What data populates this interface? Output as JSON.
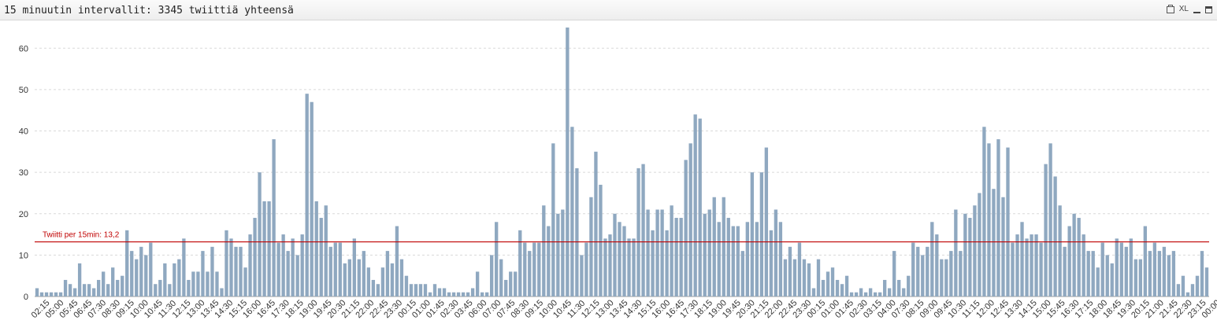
{
  "header": {
    "title": "15 minuutin intervallit: 3345 twiittiä yhteensä",
    "tools": {
      "print_icon": "print-icon",
      "xl_label": "XL",
      "minimize_icon": "minimize-icon",
      "maximize_icon": "maximize-icon"
    }
  },
  "chart_data": {
    "type": "bar",
    "title": "15 minuutin intervallit: 3345 twiittiä yhteensä",
    "xlabel": "",
    "ylabel": "",
    "ylim": [
      0,
      65
    ],
    "yticks": [
      0,
      10,
      20,
      30,
      40,
      50,
      60
    ],
    "grid": true,
    "bar_color": "#8fa8c0",
    "reference_line": {
      "value": 13.2,
      "label": "Twiitti per 15min: 13,2",
      "color": "#c00000"
    },
    "x_tick_labels": [
      "02:15",
      "05:00",
      "05:45",
      "06:45",
      "07:30",
      "08:30",
      "09:15",
      "10:00",
      "10:45",
      "11:30",
      "12:15",
      "13:00",
      "13:45",
      "14:30",
      "15:15",
      "16:00",
      "16:45",
      "17:30",
      "18:15",
      "19:00",
      "19:45",
      "20:30",
      "21:15",
      "22:00",
      "22:45",
      "23:30",
      "00:15",
      "01:00",
      "01:45",
      "02:30",
      "03:45",
      "06:00",
      "07:00",
      "07:45",
      "08:30",
      "09:15",
      "10:00",
      "10:45",
      "11:30",
      "12:15",
      "13:00",
      "13:45",
      "14:30",
      "15:15",
      "16:00",
      "16:45",
      "17:30",
      "18:15",
      "19:00",
      "19:45",
      "20:30",
      "21:15",
      "22:00",
      "22:45",
      "23:30",
      "00:15",
      "01:00",
      "01:45",
      "02:30",
      "03:15",
      "04:00",
      "07:30",
      "08:15",
      "09:00",
      "09:45",
      "10:30",
      "11:15",
      "12:00",
      "12:45",
      "13:30",
      "14:15",
      "15:00",
      "15:45",
      "16:30",
      "17:15",
      "18:00",
      "18:45",
      "19:30",
      "20:15",
      "21:00",
      "21:45",
      "22:30",
      "23:15",
      "00:00"
    ],
    "values": [
      2,
      1,
      1,
      1,
      1,
      1,
      4,
      3,
      2,
      8,
      3,
      3,
      2,
      4,
      6,
      3,
      7,
      4,
      5,
      16,
      11,
      9,
      12,
      10,
      13,
      3,
      4,
      8,
      3,
      8,
      9,
      14,
      4,
      6,
      6,
      11,
      6,
      12,
      6,
      2,
      16,
      14,
      12,
      12,
      7,
      15,
      19,
      30,
      23,
      23,
      38,
      13,
      15,
      11,
      14,
      10,
      15,
      49,
      47,
      23,
      19,
      22,
      12,
      13,
      13,
      8,
      9,
      14,
      9,
      11,
      7,
      4,
      3,
      7,
      11,
      8,
      17,
      9,
      5,
      3,
      3,
      3,
      3,
      1,
      3,
      2,
      2,
      1,
      1,
      1,
      1,
      1,
      2,
      6,
      1,
      1,
      10,
      18,
      9,
      4,
      6,
      6,
      16,
      13,
      11,
      13,
      13,
      22,
      17,
      37,
      20,
      21,
      65,
      41,
      31,
      10,
      13,
      24,
      35,
      27,
      14,
      15,
      20,
      18,
      17,
      14,
      14,
      31,
      32,
      21,
      16,
      21,
      21,
      16,
      22,
      19,
      19,
      33,
      37,
      44,
      43,
      20,
      21,
      24,
      18,
      24,
      19,
      17,
      17,
      11,
      18,
      30,
      18,
      30,
      36,
      16,
      21,
      18,
      9,
      12,
      9,
      13,
      9,
      8,
      2,
      9,
      4,
      6,
      7,
      4,
      3,
      5,
      1,
      1,
      2,
      1,
      2,
      1,
      1,
      4,
      2,
      11,
      4,
      2,
      5,
      13,
      12,
      10,
      12,
      18,
      15,
      9,
      9,
      11,
      21,
      11,
      20,
      19,
      22,
      25,
      41,
      37,
      26,
      38,
      24,
      36,
      13,
      15,
      18,
      14,
      15,
      15,
      13,
      32,
      37,
      29,
      22,
      12,
      17,
      20,
      19,
      15,
      11,
      11,
      7,
      13,
      10,
      8,
      14,
      13,
      12,
      14,
      9,
      9,
      17,
      11,
      13,
      11,
      12,
      10,
      11,
      3,
      5,
      1,
      3,
      5,
      11,
      7
    ]
  }
}
